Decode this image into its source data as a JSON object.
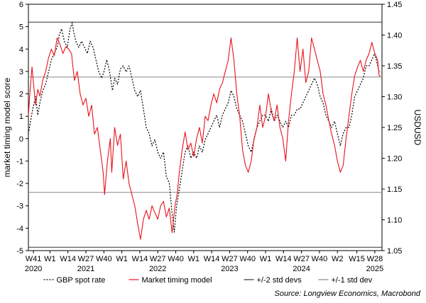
{
  "chart_data": {
    "type": "line",
    "ylabel_left": "market timing model score",
    "ylabel_right": "USDUSD",
    "ylim_left": [
      -5,
      6
    ],
    "ylim_right": [
      1.05,
      1.45
    ],
    "yticks_left": [
      "-5",
      "-4",
      "-3",
      "-2",
      "-1",
      "0",
      "1",
      "2",
      "3",
      "4",
      "5",
      "6"
    ],
    "yticks_right": [
      "1.05",
      "1.10",
      "1.15",
      "1.20",
      "1.25",
      "1.30",
      "1.35",
      "1.40",
      "1.45"
    ],
    "x_range": [
      2020.7,
      2025.62
    ],
    "x_ticks": [
      {
        "x": 2020.77,
        "label": "W41"
      },
      {
        "x": 2021.0,
        "label": "W1"
      },
      {
        "x": 2021.25,
        "label": "W14"
      },
      {
        "x": 2021.5,
        "label": "W27"
      },
      {
        "x": 2021.75,
        "label": "W40"
      },
      {
        "x": 2022.0,
        "label": "W1"
      },
      {
        "x": 2022.25,
        "label": "W14"
      },
      {
        "x": 2022.5,
        "label": "W27"
      },
      {
        "x": 2022.75,
        "label": "W40"
      },
      {
        "x": 2023.0,
        "label": "W1"
      },
      {
        "x": 2023.25,
        "label": "W14"
      },
      {
        "x": 2023.5,
        "label": "W27"
      },
      {
        "x": 2023.75,
        "label": "W40"
      },
      {
        "x": 2024.0,
        "label": "W1"
      },
      {
        "x": 2024.25,
        "label": "W14"
      },
      {
        "x": 2024.5,
        "label": "W27"
      },
      {
        "x": 2024.75,
        "label": "W40"
      },
      {
        "x": 2025.0,
        "label": "W2"
      },
      {
        "x": 2025.27,
        "label": "W15"
      },
      {
        "x": 2025.52,
        "label": "W28"
      }
    ],
    "year_labels": [
      {
        "x": 2020.77,
        "label": "2020"
      },
      {
        "x": 2021.5,
        "label": "2021"
      },
      {
        "x": 2022.5,
        "label": "2022"
      },
      {
        "x": 2023.5,
        "label": "2023"
      },
      {
        "x": 2024.5,
        "label": "2024"
      },
      {
        "x": 2025.52,
        "label": "2025"
      }
    ],
    "reference_lines": [
      {
        "name": "+/-2 std devs",
        "axis": "left",
        "values": [
          5.2,
          -4.85
        ],
        "color": "#333333"
      },
      {
        "name": "+/-1 std dev",
        "axis": "left",
        "values": [
          2.75,
          -2.4
        ],
        "color": "#888888"
      }
    ],
    "series": [
      {
        "name": "GBP spot rate",
        "axis": "right",
        "style": "dotted",
        "color": "#000000",
        "points": [
          [
            2020.7,
            1.24
          ],
          [
            2020.76,
            1.28
          ],
          [
            2020.8,
            1.3
          ],
          [
            2020.83,
            1.27
          ],
          [
            2020.86,
            1.29
          ],
          [
            2020.9,
            1.31
          ],
          [
            2020.94,
            1.32
          ],
          [
            2020.98,
            1.34
          ],
          [
            2021.02,
            1.36
          ],
          [
            2021.06,
            1.37
          ],
          [
            2021.1,
            1.38
          ],
          [
            2021.13,
            1.4
          ],
          [
            2021.16,
            1.41
          ],
          [
            2021.2,
            1.39
          ],
          [
            2021.24,
            1.38
          ],
          [
            2021.28,
            1.41
          ],
          [
            2021.31,
            1.42
          ],
          [
            2021.33,
            1.405
          ],
          [
            2021.36,
            1.39
          ],
          [
            2021.4,
            1.38
          ],
          [
            2021.44,
            1.39
          ],
          [
            2021.48,
            1.38
          ],
          [
            2021.52,
            1.37
          ],
          [
            2021.56,
            1.39
          ],
          [
            2021.6,
            1.38
          ],
          [
            2021.64,
            1.36
          ],
          [
            2021.68,
            1.34
          ],
          [
            2021.72,
            1.33
          ],
          [
            2021.75,
            1.34
          ],
          [
            2021.79,
            1.36
          ],
          [
            2021.83,
            1.34
          ],
          [
            2021.87,
            1.31
          ],
          [
            2021.9,
            1.33
          ],
          [
            2021.94,
            1.32
          ],
          [
            2021.98,
            1.345
          ],
          [
            2022.02,
            1.35
          ],
          [
            2022.06,
            1.34
          ],
          [
            2022.1,
            1.35
          ],
          [
            2022.14,
            1.33
          ],
          [
            2022.18,
            1.31
          ],
          [
            2022.22,
            1.3
          ],
          [
            2022.26,
            1.31
          ],
          [
            2022.3,
            1.28
          ],
          [
            2022.34,
            1.25
          ],
          [
            2022.38,
            1.24
          ],
          [
            2022.42,
            1.22
          ],
          [
            2022.46,
            1.23
          ],
          [
            2022.5,
            1.21
          ],
          [
            2022.54,
            1.2
          ],
          [
            2022.58,
            1.21
          ],
          [
            2022.62,
            1.17
          ],
          [
            2022.66,
            1.16
          ],
          [
            2022.7,
            1.11
          ],
          [
            2022.73,
            1.08
          ],
          [
            2022.76,
            1.12
          ],
          [
            2022.8,
            1.15
          ],
          [
            2022.84,
            1.18
          ],
          [
            2022.88,
            1.21
          ],
          [
            2022.92,
            1.22
          ],
          [
            2022.96,
            1.2
          ],
          [
            2023.0,
            1.21
          ],
          [
            2023.04,
            1.2
          ],
          [
            2023.08,
            1.22
          ],
          [
            2023.12,
            1.21
          ],
          [
            2023.16,
            1.23
          ],
          [
            2023.2,
            1.24
          ],
          [
            2023.24,
            1.25
          ],
          [
            2023.28,
            1.26
          ],
          [
            2023.32,
            1.27
          ],
          [
            2023.36,
            1.25
          ],
          [
            2023.4,
            1.27
          ],
          [
            2023.44,
            1.28
          ],
          [
            2023.48,
            1.29
          ],
          [
            2023.52,
            1.31
          ],
          [
            2023.56,
            1.3
          ],
          [
            2023.6,
            1.28
          ],
          [
            2023.64,
            1.27
          ],
          [
            2023.68,
            1.26
          ],
          [
            2023.72,
            1.24
          ],
          [
            2023.76,
            1.22
          ],
          [
            2023.8,
            1.21
          ],
          [
            2023.84,
            1.23
          ],
          [
            2023.88,
            1.25
          ],
          [
            2023.92,
            1.26
          ],
          [
            2023.96,
            1.27
          ],
          [
            2024.0,
            1.27
          ],
          [
            2024.04,
            1.26
          ],
          [
            2024.08,
            1.28
          ],
          [
            2024.12,
            1.26
          ],
          [
            2024.16,
            1.27
          ],
          [
            2024.2,
            1.26
          ],
          [
            2024.24,
            1.25
          ],
          [
            2024.28,
            1.26
          ],
          [
            2024.32,
            1.25
          ],
          [
            2024.36,
            1.27
          ],
          [
            2024.4,
            1.27
          ],
          [
            2024.44,
            1.28
          ],
          [
            2024.48,
            1.28
          ],
          [
            2024.52,
            1.29
          ],
          [
            2024.56,
            1.3
          ],
          [
            2024.6,
            1.31
          ],
          [
            2024.64,
            1.32
          ],
          [
            2024.68,
            1.33
          ],
          [
            2024.72,
            1.32
          ],
          [
            2024.76,
            1.3
          ],
          [
            2024.8,
            1.29
          ],
          [
            2024.84,
            1.27
          ],
          [
            2024.88,
            1.26
          ],
          [
            2024.92,
            1.25
          ],
          [
            2024.96,
            1.26
          ],
          [
            2025.0,
            1.24
          ],
          [
            2025.04,
            1.22
          ],
          [
            2025.08,
            1.24
          ],
          [
            2025.12,
            1.25
          ],
          [
            2025.16,
            1.25
          ],
          [
            2025.2,
            1.27
          ],
          [
            2025.24,
            1.3
          ],
          [
            2025.28,
            1.31
          ],
          [
            2025.32,
            1.32
          ],
          [
            2025.36,
            1.33
          ],
          [
            2025.4,
            1.35
          ],
          [
            2025.44,
            1.35
          ],
          [
            2025.48,
            1.36
          ],
          [
            2025.52,
            1.37
          ],
          [
            2025.56,
            1.35
          ],
          [
            2025.58,
            1.34
          ],
          [
            2025.6,
            1.34
          ]
        ]
      },
      {
        "name": "Market timing model",
        "axis": "left",
        "style": "solid",
        "color": "#e8141c",
        "points": [
          [
            2020.7,
            1.0
          ],
          [
            2020.72,
            2.0
          ],
          [
            2020.75,
            3.2
          ],
          [
            2020.77,
            2.5
          ],
          [
            2020.8,
            1.5
          ],
          [
            2020.83,
            2.2
          ],
          [
            2020.86,
            1.9
          ],
          [
            2020.9,
            2.6
          ],
          [
            2020.94,
            3.0
          ],
          [
            2020.98,
            3.6
          ],
          [
            2021.02,
            4.0
          ],
          [
            2021.06,
            3.7
          ],
          [
            2021.1,
            4.5
          ],
          [
            2021.14,
            4.2
          ],
          [
            2021.18,
            3.8
          ],
          [
            2021.22,
            4.1
          ],
          [
            2021.26,
            4.0
          ],
          [
            2021.3,
            3.8
          ],
          [
            2021.34,
            2.6
          ],
          [
            2021.38,
            3.0
          ],
          [
            2021.42,
            2.0
          ],
          [
            2021.46,
            1.5
          ],
          [
            2021.5,
            1.8
          ],
          [
            2021.54,
            1.0
          ],
          [
            2021.58,
            1.5
          ],
          [
            2021.62,
            0.2
          ],
          [
            2021.66,
            0.5
          ],
          [
            2021.7,
            -0.5
          ],
          [
            2021.74,
            -1.5
          ],
          [
            2021.76,
            -2.5
          ],
          [
            2021.8,
            -1.0
          ],
          [
            2021.84,
            0.0
          ],
          [
            2021.86,
            -1.5
          ],
          [
            2021.9,
            0.5
          ],
          [
            2021.94,
            -0.3
          ],
          [
            2021.98,
            0.2
          ],
          [
            2022.02,
            -1.8
          ],
          [
            2022.06,
            -1.0
          ],
          [
            2022.1,
            -2.0
          ],
          [
            2022.14,
            -2.5
          ],
          [
            2022.18,
            -3.0
          ],
          [
            2022.22,
            -3.8
          ],
          [
            2022.26,
            -4.5
          ],
          [
            2022.3,
            -3.6
          ],
          [
            2022.34,
            -3.2
          ],
          [
            2022.38,
            -3.6
          ],
          [
            2022.42,
            -3.0
          ],
          [
            2022.46,
            -3.3
          ],
          [
            2022.5,
            -3.6
          ],
          [
            2022.54,
            -3.0
          ],
          [
            2022.58,
            -2.8
          ],
          [
            2022.62,
            -3.5
          ],
          [
            2022.66,
            -3.1
          ],
          [
            2022.7,
            -4.2
          ],
          [
            2022.74,
            -3.0
          ],
          [
            2022.77,
            -2.5
          ],
          [
            2022.8,
            -1.5
          ],
          [
            2022.84,
            -0.5
          ],
          [
            2022.88,
            0.3
          ],
          [
            2022.92,
            -0.5
          ],
          [
            2022.96,
            -0.2
          ],
          [
            2023.0,
            -0.8
          ],
          [
            2023.04,
            0.0
          ],
          [
            2023.08,
            0.5
          ],
          [
            2023.12,
            -0.2
          ],
          [
            2023.16,
            1.0
          ],
          [
            2023.2,
            0.8
          ],
          [
            2023.24,
            1.5
          ],
          [
            2023.28,
            2.0
          ],
          [
            2023.32,
            1.6
          ],
          [
            2023.36,
            2.2
          ],
          [
            2023.4,
            2.5
          ],
          [
            2023.44,
            3.0
          ],
          [
            2023.48,
            3.5
          ],
          [
            2023.52,
            4.5
          ],
          [
            2023.56,
            3.5
          ],
          [
            2023.6,
            2.0
          ],
          [
            2023.64,
            1.0
          ],
          [
            2023.68,
            -0.5
          ],
          [
            2023.72,
            -1.2
          ],
          [
            2023.76,
            -1.5
          ],
          [
            2023.8,
            -1.0
          ],
          [
            2023.84,
            0.0
          ],
          [
            2023.88,
            0.5
          ],
          [
            2023.92,
            1.5
          ],
          [
            2023.96,
            0.5
          ],
          [
            2024.0,
            1.0
          ],
          [
            2024.04,
            2.0
          ],
          [
            2024.08,
            1.2
          ],
          [
            2024.12,
            0.8
          ],
          [
            2024.16,
            1.5
          ],
          [
            2024.2,
            0.5
          ],
          [
            2024.24,
            0.0
          ],
          [
            2024.28,
            -1.0
          ],
          [
            2024.32,
            0.8
          ],
          [
            2024.36,
            2.0
          ],
          [
            2024.4,
            3.0
          ],
          [
            2024.44,
            4.5
          ],
          [
            2024.48,
            3.0
          ],
          [
            2024.52,
            4.0
          ],
          [
            2024.56,
            2.5
          ],
          [
            2024.6,
            3.0
          ],
          [
            2024.64,
            4.5
          ],
          [
            2024.68,
            4.0
          ],
          [
            2024.72,
            3.5
          ],
          [
            2024.76,
            3.0
          ],
          [
            2024.8,
            2.0
          ],
          [
            2024.84,
            1.5
          ],
          [
            2024.88,
            0.8
          ],
          [
            2024.92,
            0.2
          ],
          [
            2024.96,
            -0.3
          ],
          [
            2025.0,
            -1.0
          ],
          [
            2025.04,
            -1.5
          ],
          [
            2025.08,
            -1.2
          ],
          [
            2025.12,
            0.0
          ],
          [
            2025.16,
            1.0
          ],
          [
            2025.2,
            2.0
          ],
          [
            2025.24,
            2.8
          ],
          [
            2025.28,
            3.2
          ],
          [
            2025.32,
            3.5
          ],
          [
            2025.36,
            3.0
          ],
          [
            2025.4,
            3.5
          ],
          [
            2025.44,
            3.8
          ],
          [
            2025.48,
            4.3
          ],
          [
            2025.52,
            3.8
          ],
          [
            2025.56,
            3.5
          ],
          [
            2025.58,
            2.8
          ],
          [
            2025.6,
            2.8
          ]
        ]
      }
    ],
    "legend": {
      "placement": "bottom",
      "entries": [
        {
          "name": "GBP spot rate",
          "style": "dotted",
          "color": "#000000"
        },
        {
          "name": "Market timing model",
          "style": "solid",
          "color": "#e8141c"
        },
        {
          "name": "+/-2 std devs",
          "style": "solid",
          "color": "#333333"
        },
        {
          "name": "+/-1 std dev",
          "style": "solid",
          "color": "#888888"
        }
      ]
    },
    "source": "Source: Longview Economics, Macrobond",
    "grid": false
  }
}
